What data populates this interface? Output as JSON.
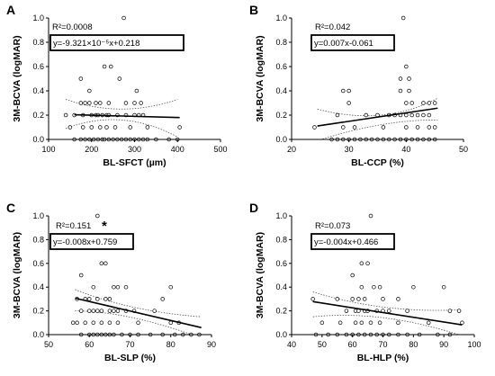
{
  "chart_data": [
    {
      "type": "scatter",
      "panel_label": "A",
      "xlabel": "BL-SFCT (µm)",
      "ylabel": "3M-BCVA  (logMAR)",
      "xlim": [
        100,
        500
      ],
      "ylim": [
        0,
        1.0
      ],
      "xticks": [
        "100",
        "200",
        "300",
        "400",
        "500"
      ],
      "yticks": [
        "0.0",
        "0.2",
        "0.4",
        "0.6",
        "0.8",
        "1.0"
      ],
      "r2_text": "R²=0.0008",
      "equation_text": "y=-9.321×10⁻⁵x+0.218",
      "fit": {
        "slope": -9.321e-05,
        "intercept": 0.218,
        "x_range": [
          160,
          405
        ]
      },
      "ci": {
        "upper": [
          [
            140,
            0.33
          ],
          [
            270,
            0.25
          ],
          [
            400,
            0.33
          ]
        ],
        "lower": [
          [
            140,
            0.09
          ],
          [
            270,
            0.16
          ],
          [
            400,
            0.02
          ]
        ]
      },
      "points": [
        [
          175,
          0.5
        ],
        [
          195,
          0.4
        ],
        [
          175,
          0.3
        ],
        [
          185,
          0.3
        ],
        [
          195,
          0.3
        ],
        [
          210,
          0.3
        ],
        [
          220,
          0.3
        ],
        [
          240,
          0.3
        ],
        [
          280,
          0.3
        ],
        [
          230,
          0.6
        ],
        [
          245,
          0.6
        ],
        [
          275,
          1.0
        ],
        [
          265,
          0.5
        ],
        [
          305,
          0.4
        ],
        [
          300,
          0.3
        ],
        [
          315,
          0.3
        ],
        [
          140,
          0.2
        ],
        [
          160,
          0.2
        ],
        [
          180,
          0.2
        ],
        [
          200,
          0.2
        ],
        [
          210,
          0.2
        ],
        [
          215,
          0.2
        ],
        [
          225,
          0.2
        ],
        [
          235,
          0.2
        ],
        [
          240,
          0.2
        ],
        [
          260,
          0.2
        ],
        [
          280,
          0.2
        ],
        [
          300,
          0.2
        ],
        [
          310,
          0.2
        ],
        [
          320,
          0.2
        ],
        [
          150,
          0.1
        ],
        [
          180,
          0.1
        ],
        [
          200,
          0.1
        ],
        [
          220,
          0.1
        ],
        [
          235,
          0.1
        ],
        [
          255,
          0.1
        ],
        [
          290,
          0.1
        ],
        [
          330,
          0.1
        ],
        [
          405,
          0.1
        ],
        [
          160,
          0
        ],
        [
          175,
          0
        ],
        [
          185,
          0
        ],
        [
          195,
          0
        ],
        [
          205,
          0
        ],
        [
          215,
          0
        ],
        [
          225,
          0
        ],
        [
          230,
          0
        ],
        [
          240,
          0
        ],
        [
          250,
          0
        ],
        [
          260,
          0
        ],
        [
          270,
          0
        ],
        [
          280,
          0
        ],
        [
          290,
          0
        ],
        [
          300,
          0
        ],
        [
          310,
          0
        ],
        [
          320,
          0
        ],
        [
          330,
          0
        ],
        [
          350,
          0
        ],
        [
          380,
          0
        ],
        [
          400,
          0
        ]
      ]
    },
    {
      "type": "scatter",
      "panel_label": "B",
      "xlabel": "BL-CCP  (%)",
      "ylabel": "3M-BCVA  (logMAR)",
      "xlim": [
        20,
        50
      ],
      "ylim": [
        0,
        1.0
      ],
      "xticks": [
        "20",
        "30",
        "40",
        "50"
      ],
      "yticks": [
        "0.0",
        "0.2",
        "0.4",
        "0.6",
        "0.8",
        "1.0"
      ],
      "r2_text": "R²=0.042",
      "equation_text": "y=0.007x-0.061",
      "fit": {
        "slope": 0.007,
        "intercept": -0.061,
        "x_range": [
          24.5,
          45.5
        ]
      },
      "ci": {
        "upper": [
          [
            24.5,
            0.25
          ],
          [
            36,
            0.2
          ],
          [
            45.5,
            0.34
          ]
        ],
        "lower": [
          [
            24.5,
            -0.01
          ],
          [
            36,
            0.12
          ],
          [
            45.5,
            0.16
          ]
        ]
      },
      "points": [
        [
          39.5,
          1.0
        ],
        [
          40,
          0.6
        ],
        [
          39,
          0.5
        ],
        [
          40.5,
          0.5
        ],
        [
          29,
          0.4
        ],
        [
          30,
          0.4
        ],
        [
          39,
          0.4
        ],
        [
          40.5,
          0.4
        ],
        [
          28,
          0.2
        ],
        [
          33,
          0.2
        ],
        [
          35,
          0.2
        ],
        [
          37,
          0.2
        ],
        [
          38,
          0.2
        ],
        [
          39,
          0.2
        ],
        [
          40,
          0.2
        ],
        [
          41,
          0.2
        ],
        [
          42,
          0.2
        ],
        [
          43,
          0.2
        ],
        [
          44,
          0.2
        ],
        [
          30,
          0.3
        ],
        [
          40,
          0.3
        ],
        [
          41,
          0.3
        ],
        [
          43,
          0.3
        ],
        [
          44,
          0.3
        ],
        [
          45,
          0.3
        ],
        [
          24,
          0.1
        ],
        [
          29,
          0.1
        ],
        [
          31,
          0.1
        ],
        [
          36,
          0.1
        ],
        [
          40,
          0.1
        ],
        [
          42,
          0.1
        ],
        [
          44,
          0.1
        ],
        [
          45,
          0.1
        ],
        [
          27,
          0
        ],
        [
          28,
          0
        ],
        [
          29,
          0
        ],
        [
          30,
          0
        ],
        [
          31,
          0
        ],
        [
          32,
          0
        ],
        [
          33,
          0
        ],
        [
          34,
          0
        ],
        [
          35,
          0
        ],
        [
          36,
          0
        ],
        [
          37,
          0
        ],
        [
          38,
          0
        ],
        [
          39,
          0
        ],
        [
          40,
          0
        ],
        [
          41,
          0
        ],
        [
          42,
          0
        ],
        [
          43,
          0
        ],
        [
          44,
          0
        ],
        [
          45,
          0
        ]
      ]
    },
    {
      "type": "scatter",
      "panel_label": "C",
      "xlabel": "BL-SLP  (%)",
      "ylabel": "3M-BCVA  (logMAR)",
      "xlim": [
        50,
        90
      ],
      "ylim": [
        0,
        1.0
      ],
      "xticks": [
        "50",
        "60",
        "70",
        "80",
        "90"
      ],
      "yticks": [
        "0.0",
        "0.2",
        "0.4",
        "0.6",
        "0.8",
        "1.0"
      ],
      "r2_text": "R²=0.151",
      "significance": "*",
      "equation_text": "y=-0.008x+0.759",
      "fit": {
        "slope": -0.008,
        "intercept": 0.759,
        "x_range": [
          56.5,
          87.5
        ]
      },
      "ci": {
        "upper": [
          [
            56.5,
            0.38
          ],
          [
            70,
            0.23
          ],
          [
            87.5,
            0.15
          ]
        ],
        "lower": [
          [
            56.5,
            0.2
          ],
          [
            70,
            0.14
          ],
          [
            87.5,
            -0.03
          ]
        ]
      },
      "points": [
        [
          62,
          1.0
        ],
        [
          63,
          0.6
        ],
        [
          64,
          0.6
        ],
        [
          58,
          0.5
        ],
        [
          61,
          0.4
        ],
        [
          66,
          0.4
        ],
        [
          69,
          0.4
        ],
        [
          67,
          0.4
        ],
        [
          80,
          0.4
        ],
        [
          57,
          0.3
        ],
        [
          59,
          0.3
        ],
        [
          60,
          0.3
        ],
        [
          62,
          0.3
        ],
        [
          64,
          0.3
        ],
        [
          65,
          0.3
        ],
        [
          78,
          0.3
        ],
        [
          58,
          0.2
        ],
        [
          60,
          0.2
        ],
        [
          61,
          0.2
        ],
        [
          62,
          0.2
        ],
        [
          63,
          0.2
        ],
        [
          65,
          0.2
        ],
        [
          66,
          0.2
        ],
        [
          67,
          0.2
        ],
        [
          69,
          0.2
        ],
        [
          71,
          0.2
        ],
        [
          76,
          0.2
        ],
        [
          56,
          0.1
        ],
        [
          57,
          0.1
        ],
        [
          59,
          0.1
        ],
        [
          61,
          0.1
        ],
        [
          63,
          0.1
        ],
        [
          65,
          0.1
        ],
        [
          67,
          0.1
        ],
        [
          72,
          0.1
        ],
        [
          80,
          0.1
        ],
        [
          82,
          0.1
        ],
        [
          58,
          0
        ],
        [
          60,
          0
        ],
        [
          61,
          0
        ],
        [
          62,
          0
        ],
        [
          63,
          0
        ],
        [
          64,
          0
        ],
        [
          65,
          0
        ],
        [
          66,
          0
        ],
        [
          68,
          0
        ],
        [
          70,
          0
        ],
        [
          72,
          0
        ],
        [
          75,
          0
        ],
        [
          78,
          0
        ],
        [
          81,
          0
        ],
        [
          83,
          0
        ],
        [
          85,
          0
        ],
        [
          87,
          0
        ]
      ]
    },
    {
      "type": "scatter",
      "panel_label": "D",
      "xlabel": "BL-HLP  (%)",
      "ylabel": "3M-BCVA  (logMAR)",
      "xlim": [
        40,
        100
      ],
      "ylim": [
        0,
        1.0
      ],
      "xticks": [
        "40",
        "50",
        "60",
        "70",
        "80",
        "90",
        "100"
      ],
      "yticks": [
        "0.0",
        "0.2",
        "0.4",
        "0.6",
        "0.8",
        "1.0"
      ],
      "r2_text": "R²=0.073",
      "equation_text": "y=-0.004x+0.466",
      "fit": {
        "slope": -0.004,
        "intercept": 0.466,
        "x_range": [
          47,
          96
        ]
      },
      "ci": {
        "upper": [
          [
            47,
            0.36
          ],
          [
            70,
            0.23
          ],
          [
            96,
            0.21
          ]
        ],
        "lower": [
          [
            47,
            0.15
          ],
          [
            70,
            0.14
          ],
          [
            96,
            -0.01
          ]
        ]
      },
      "points": [
        [
          66,
          1.0
        ],
        [
          63,
          0.6
        ],
        [
          65,
          0.6
        ],
        [
          60,
          0.5
        ],
        [
          63,
          0.4
        ],
        [
          67,
          0.4
        ],
        [
          69,
          0.4
        ],
        [
          80,
          0.4
        ],
        [
          90,
          0.4
        ],
        [
          47,
          0.3
        ],
        [
          55,
          0.3
        ],
        [
          60,
          0.3
        ],
        [
          62,
          0.3
        ],
        [
          64,
          0.3
        ],
        [
          70,
          0.3
        ],
        [
          75,
          0.3
        ],
        [
          58,
          0.2
        ],
        [
          61,
          0.2
        ],
        [
          62,
          0.2
        ],
        [
          64,
          0.2
        ],
        [
          65,
          0.2
        ],
        [
          68,
          0.2
        ],
        [
          70,
          0.2
        ],
        [
          72,
          0.2
        ],
        [
          78,
          0.2
        ],
        [
          92,
          0.2
        ],
        [
          95,
          0.2
        ],
        [
          50,
          0.1
        ],
        [
          56,
          0.1
        ],
        [
          61,
          0.1
        ],
        [
          63,
          0.1
        ],
        [
          66,
          0.1
        ],
        [
          69,
          0.1
        ],
        [
          75,
          0.1
        ],
        [
          85,
          0.1
        ],
        [
          96,
          0.1
        ],
        [
          48,
          0
        ],
        [
          52,
          0
        ],
        [
          55,
          0
        ],
        [
          58,
          0
        ],
        [
          60,
          0
        ],
        [
          62,
          0
        ],
        [
          64,
          0
        ],
        [
          66,
          0
        ],
        [
          68,
          0
        ],
        [
          70,
          0
        ],
        [
          72,
          0
        ],
        [
          75,
          0
        ],
        [
          78,
          0
        ],
        [
          82,
          0
        ],
        [
          88,
          0
        ],
        [
          92,
          0
        ]
      ]
    }
  ]
}
